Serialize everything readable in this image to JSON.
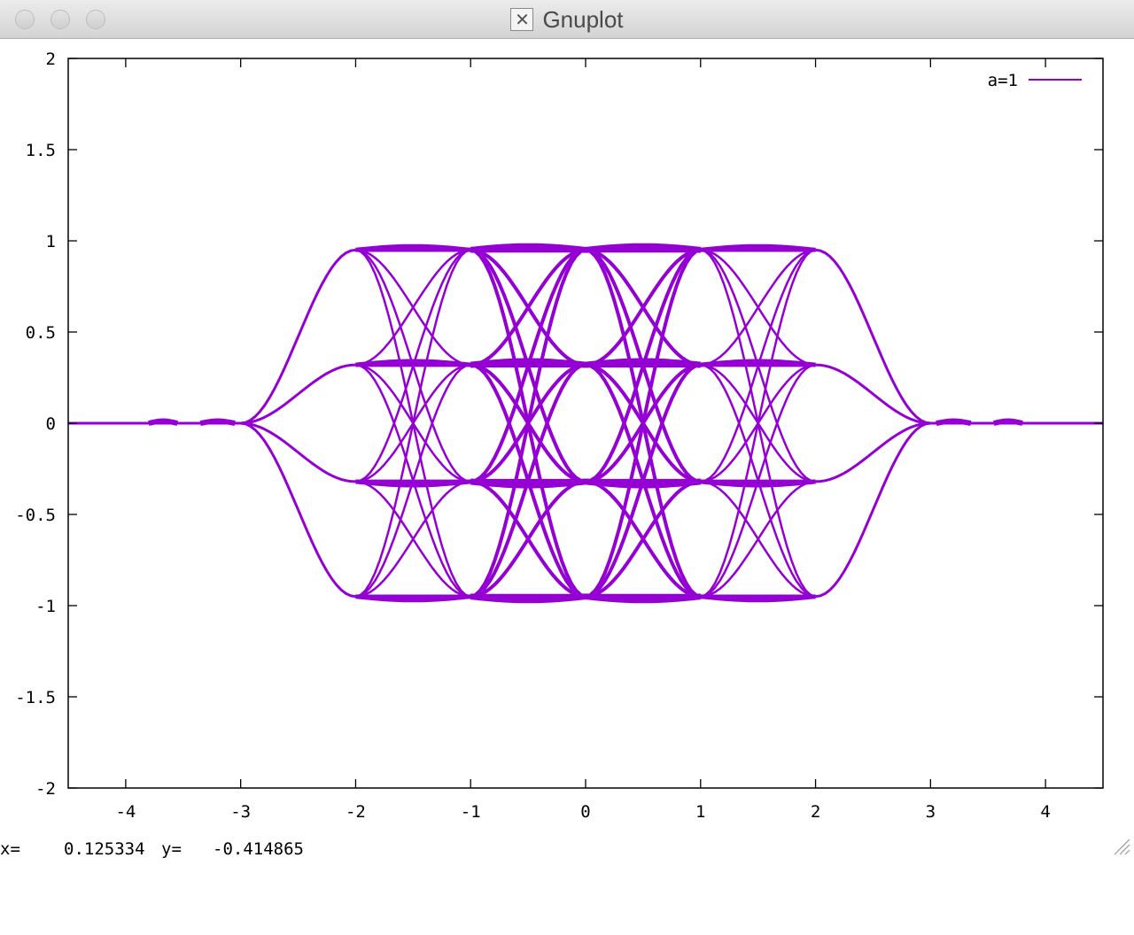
{
  "window": {
    "title": "Gnuplot",
    "icon": "x11-icon"
  },
  "status": {
    "x_label": "x=",
    "x_value": "0.125334",
    "y_label": "y=",
    "y_value": "-0.414865"
  },
  "colors": {
    "series": "#9400d3",
    "axis": "#000000",
    "background": "#ffffff"
  },
  "chart_data": {
    "type": "line",
    "title": "",
    "xlabel": "",
    "ylabel": "",
    "xlim": [
      -4.5,
      4.5
    ],
    "ylim": [
      -2,
      2
    ],
    "xticks": [
      -4,
      -3,
      -2,
      -1,
      0,
      1,
      2,
      3,
      4
    ],
    "xtick_labels": [
      "-4",
      "-3",
      "-2",
      "-1",
      "0",
      "1",
      "2",
      "3",
      "4"
    ],
    "yticks": [
      -2,
      -1.5,
      -1,
      -0.5,
      0,
      0.5,
      1,
      1.5,
      2
    ],
    "ytick_labels": [
      "-2",
      "-1.5",
      "-1",
      "-0.5",
      "0",
      "0.5",
      "1",
      "1.5",
      "2"
    ],
    "grid": false,
    "legend": "top-right",
    "series": [
      {
        "name": "a=1",
        "color": "#9400d3",
        "nodes_x": [
          -3,
          -2,
          -1,
          0,
          1,
          2,
          3
        ],
        "node_levels": [
          -0.95,
          -0.32,
          0.32,
          0.95
        ],
        "envelope_points": [
          [
            -4.5,
            0
          ],
          [
            -3.5,
            0
          ],
          [
            -3,
            0
          ],
          [
            -2.5,
            0.5
          ],
          [
            -2,
            0.95
          ],
          [
            -1,
            0.97
          ],
          [
            0,
            0.97
          ],
          [
            1,
            0.97
          ],
          [
            2,
            0.95
          ],
          [
            2.5,
            0.5
          ],
          [
            3,
            0
          ],
          [
            3.5,
            0
          ],
          [
            4.5,
            0
          ]
        ]
      }
    ]
  }
}
